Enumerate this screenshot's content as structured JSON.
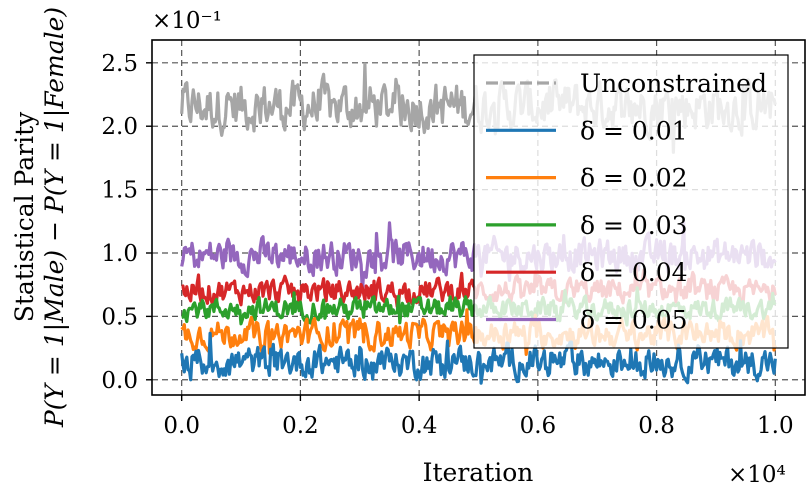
{
  "chart_data": {
    "type": "line",
    "xlabel": "Iteration",
    "ylabel_line1": "Statistical Parity",
    "ylabel_line2": "P(Y = 1|Male) − P(Y = 1|Female)",
    "x_scale_label": "×10⁴",
    "y_scale_label": "×10⁻¹",
    "x_ticks": [
      "0.0",
      "0.2",
      "0.4",
      "0.6",
      "0.8",
      "1.0"
    ],
    "y_ticks": [
      "0.0",
      "0.5",
      "1.0",
      "1.5",
      "2.0",
      "2.5"
    ],
    "xlim": [
      -0.05,
      1.05
    ],
    "ylim": [
      -0.12,
      2.68
    ],
    "x_range": [
      0,
      1
    ],
    "grid": true,
    "legend_position": "top-right",
    "series": [
      {
        "name": "Unconstrained",
        "color": "#a6a6a6",
        "dash": true,
        "mean": 2.16,
        "spread": 0.16,
        "x_end": 1.0
      },
      {
        "name": "δ = 0.05",
        "color": "#9467bd",
        "dash": false,
        "mean": 0.98,
        "spread": 0.11,
        "x_end": 1.0
      },
      {
        "name": "δ = 0.04",
        "color": "#d62728",
        "dash": false,
        "mean": 0.7,
        "spread": 0.08,
        "x_end": 1.0
      },
      {
        "name": "δ = 0.03",
        "color": "#2ca02c",
        "dash": false,
        "mean": 0.56,
        "spread": 0.07,
        "x_end": 1.0
      },
      {
        "name": "δ = 0.02",
        "color": "#ff7f0e",
        "dash": false,
        "mean": 0.36,
        "spread": 0.09,
        "x_end": 1.0
      },
      {
        "name": "δ = 0.01",
        "color": "#1f77b4",
        "dash": false,
        "mean": 0.14,
        "spread": 0.1,
        "x_end": 1.0
      }
    ],
    "legend_order": [
      "Unconstrained",
      "δ = 0.01",
      "δ = 0.02",
      "δ = 0.03",
      "δ = 0.04",
      "δ = 0.05"
    ],
    "legend_colors": [
      "#a6a6a6",
      "#1f77b4",
      "#ff7f0e",
      "#2ca02c",
      "#d62728",
      "#9467bd"
    ]
  }
}
